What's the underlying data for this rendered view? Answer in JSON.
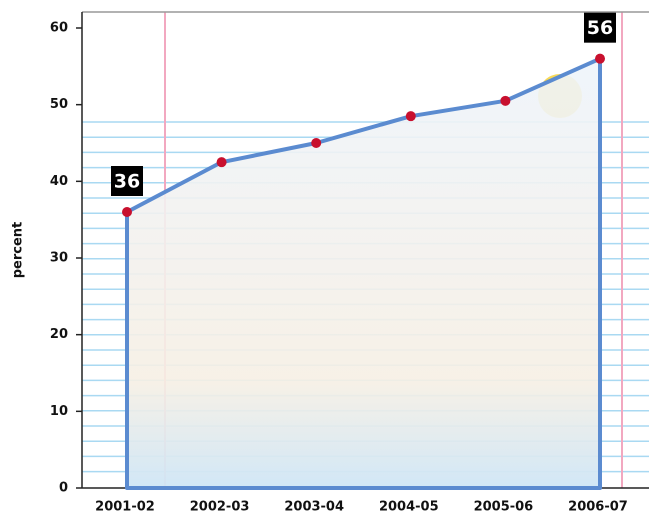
{
  "chart_data": {
    "type": "area",
    "ylabel": "percent",
    "categories": [
      "2001-02",
      "2002-03",
      "2003-04",
      "2004-05",
      "2005-06",
      "2006-07"
    ],
    "values": [
      36,
      42.5,
      45,
      48.5,
      50.5,
      56
    ],
    "value_labels": [
      "36",
      null,
      null,
      null,
      null,
      "56"
    ],
    "color": "#5b8bd0",
    "marker_color": "#c8102e",
    "ylim": [
      0,
      60
    ],
    "yticks": [
      0,
      10,
      20,
      30,
      40,
      50,
      60
    ]
  }
}
